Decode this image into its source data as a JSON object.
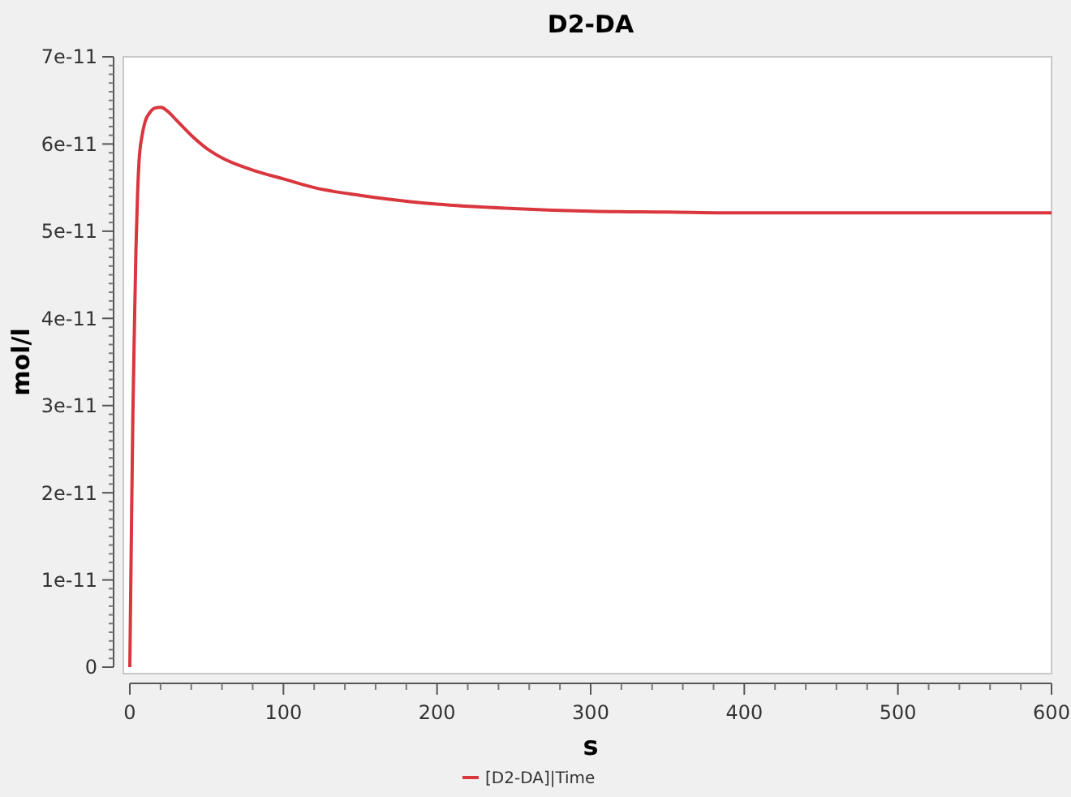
{
  "chart_data": {
    "type": "line",
    "title": "D2-DA",
    "xlabel": "s",
    "ylabel": "mol/l",
    "xlim": [
      0,
      600
    ],
    "xticks": [
      0,
      100,
      200,
      300,
      400,
      500,
      600
    ],
    "ylim": [
      0,
      7e-11
    ],
    "yticks": [
      0,
      1e-11,
      2e-11,
      3e-11,
      4e-11,
      5e-11,
      6e-11,
      7e-11
    ],
    "legend": "bottom",
    "grid": false,
    "series": [
      {
        "name": "[D2-DA]|Time",
        "color": "#d9363e",
        "x": [
          0,
          1,
          2,
          3,
          4,
          5,
          6,
          8,
          10,
          13,
          16,
          20,
          22,
          25,
          30,
          40,
          50,
          60,
          80,
          100,
          120,
          150,
          200,
          250,
          300,
          350,
          400,
          450,
          500,
          550,
          600
        ],
        "values": [
          0,
          1.5e-11,
          2.9e-11,
          3.9e-11,
          4.8e-11,
          5.4e-11,
          5.8e-11,
          6.1e-11,
          6.26e-11,
          6.36e-11,
          6.41e-11,
          6.42e-11,
          6.41e-11,
          6.37e-11,
          6.28e-11,
          6.1e-11,
          5.95e-11,
          5.84e-11,
          5.7e-11,
          5.6e-11,
          5.5e-11,
          5.41e-11,
          5.31e-11,
          5.26e-11,
          5.23e-11,
          5.22e-11,
          5.21e-11,
          5.21e-11,
          5.21e-11,
          5.21e-11,
          5.21e-11
        ]
      }
    ]
  }
}
